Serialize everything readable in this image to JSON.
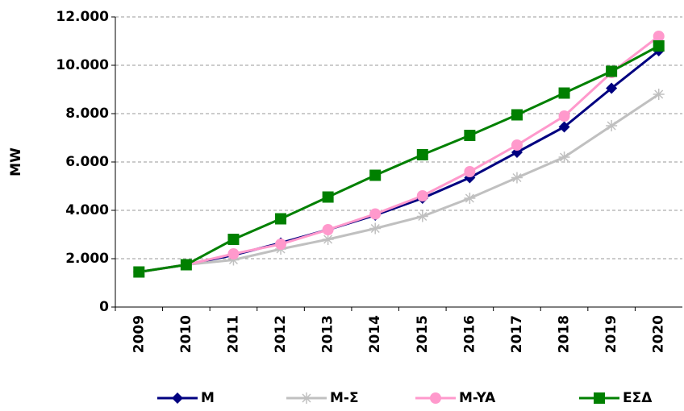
{
  "chart_data": {
    "type": "line",
    "y_label": "MW",
    "categories": [
      "2009",
      "2010",
      "2011",
      "2012",
      "2013",
      "2014",
      "2015",
      "2016",
      "2017",
      "2018",
      "2019",
      "2020"
    ],
    "series": [
      {
        "name": "M",
        "color": "#000080",
        "marker": "diamond",
        "values": [
          1450,
          1750,
          2150,
          2650,
          3200,
          3800,
          4500,
          5350,
          6400,
          7450,
          9050,
          10600
        ]
      },
      {
        "name": "M-Σ",
        "color": "#c0c0c0",
        "marker": "star",
        "values": [
          1450,
          1750,
          1950,
          2400,
          2800,
          3250,
          3750,
          4500,
          5350,
          6200,
          7500,
          8800
        ]
      },
      {
        "name": "M-YA",
        "color": "#ff99cc",
        "marker": "circle",
        "values": [
          1450,
          1750,
          2200,
          2600,
          3200,
          3850,
          4600,
          5600,
          6700,
          7900,
          9700,
          11200
        ]
      },
      {
        "name": "ΕΣΔ",
        "color": "#008000",
        "marker": "square",
        "values": [
          1450,
          1750,
          2800,
          3650,
          4550,
          5450,
          6300,
          7100,
          7950,
          8850,
          9750,
          10800
        ]
      }
    ],
    "ylim": [
      0,
      12000
    ],
    "yticks": [
      0,
      {
        "value": 2000,
        "label": "2.000"
      },
      {
        "value": 4000,
        "label": "4.000"
      },
      {
        "value": 6000,
        "label": "6.000"
      },
      {
        "value": 8000,
        "label": "8.000"
      },
      {
        "value": 10000,
        "label": "10.000"
      },
      {
        "value": 12000,
        "label": "12.000"
      }
    ],
    "grid": true,
    "legend": "bottom"
  }
}
